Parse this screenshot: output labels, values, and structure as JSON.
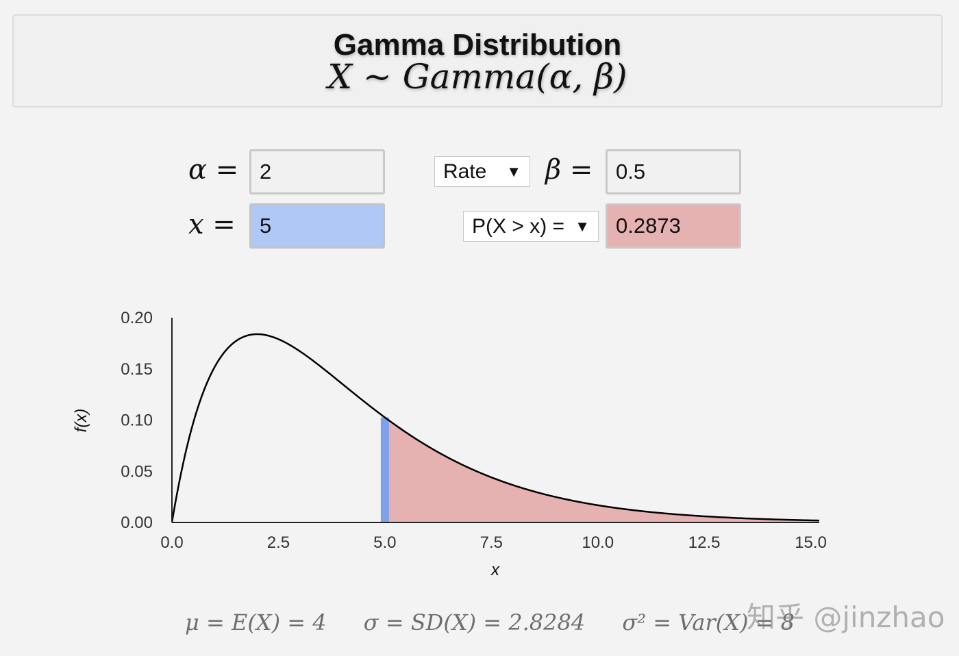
{
  "header": {
    "title": "Gamma Distribution",
    "formula": "X ~ Gamma(α, β)"
  },
  "params": {
    "alpha_label": "α =",
    "alpha_value": "2",
    "x_label": "x =",
    "x_value": "5",
    "param_type_selected": "Rate",
    "beta_label": "β =",
    "beta_value": "0.5",
    "prob_type_selected": "P(X > x) =",
    "prob_value": "0.2873"
  },
  "icons": {
    "dropdown": "dropdown-arrow-icon"
  },
  "colors": {
    "pdf_fill": "#e6b1b1",
    "x_marker": "#7ea2ea",
    "curve": "#000000"
  },
  "stats": {
    "mean": "μ = E(X) = 4",
    "sd": "σ = SD(X) = 2.8284",
    "var": "σ² = Var(X) = 8"
  },
  "watermark": "知乎 @jinzhao",
  "chart_data": {
    "type": "area",
    "xlabel": "x",
    "ylabel": "f(x)",
    "xlim": [
      0,
      15.2
    ],
    "ylim": [
      0,
      0.2
    ],
    "xticks": [
      "0.0",
      "2.5",
      "5.0",
      "7.5",
      "10.0",
      "12.5",
      "15.0"
    ],
    "yticks": [
      "0.00",
      "0.05",
      "0.10",
      "0.15",
      "0.20"
    ],
    "x_marker": 5,
    "shaded_region": [
      5,
      15.2
    ],
    "series": [
      {
        "x": [
          0,
          0.25,
          0.5,
          0.75,
          1,
          1.5,
          2,
          2.5,
          3,
          3.5,
          4,
          4.5,
          5,
          5.5,
          6,
          6.5,
          7,
          7.5,
          8,
          8.5,
          9,
          9.5,
          10,
          10.5,
          11,
          11.5,
          12,
          12.5,
          13,
          13.5,
          14,
          14.5,
          15,
          15.2
        ],
        "y": [
          0,
          0.0551,
          0.0974,
          0.1289,
          0.1516,
          0.1771,
          0.1839,
          0.1791,
          0.1673,
          0.1516,
          0.1353,
          0.1188,
          0.1026,
          0.0879,
          0.0747,
          0.0629,
          0.0528,
          0.044,
          0.0366,
          0.0304,
          0.025,
          0.0206,
          0.0168,
          0.0138,
          0.0113,
          0.0092,
          0.0074,
          0.006,
          0.0049,
          0.004,
          0.0032,
          0.0026,
          0.0021,
          0.0019
        ]
      }
    ]
  }
}
